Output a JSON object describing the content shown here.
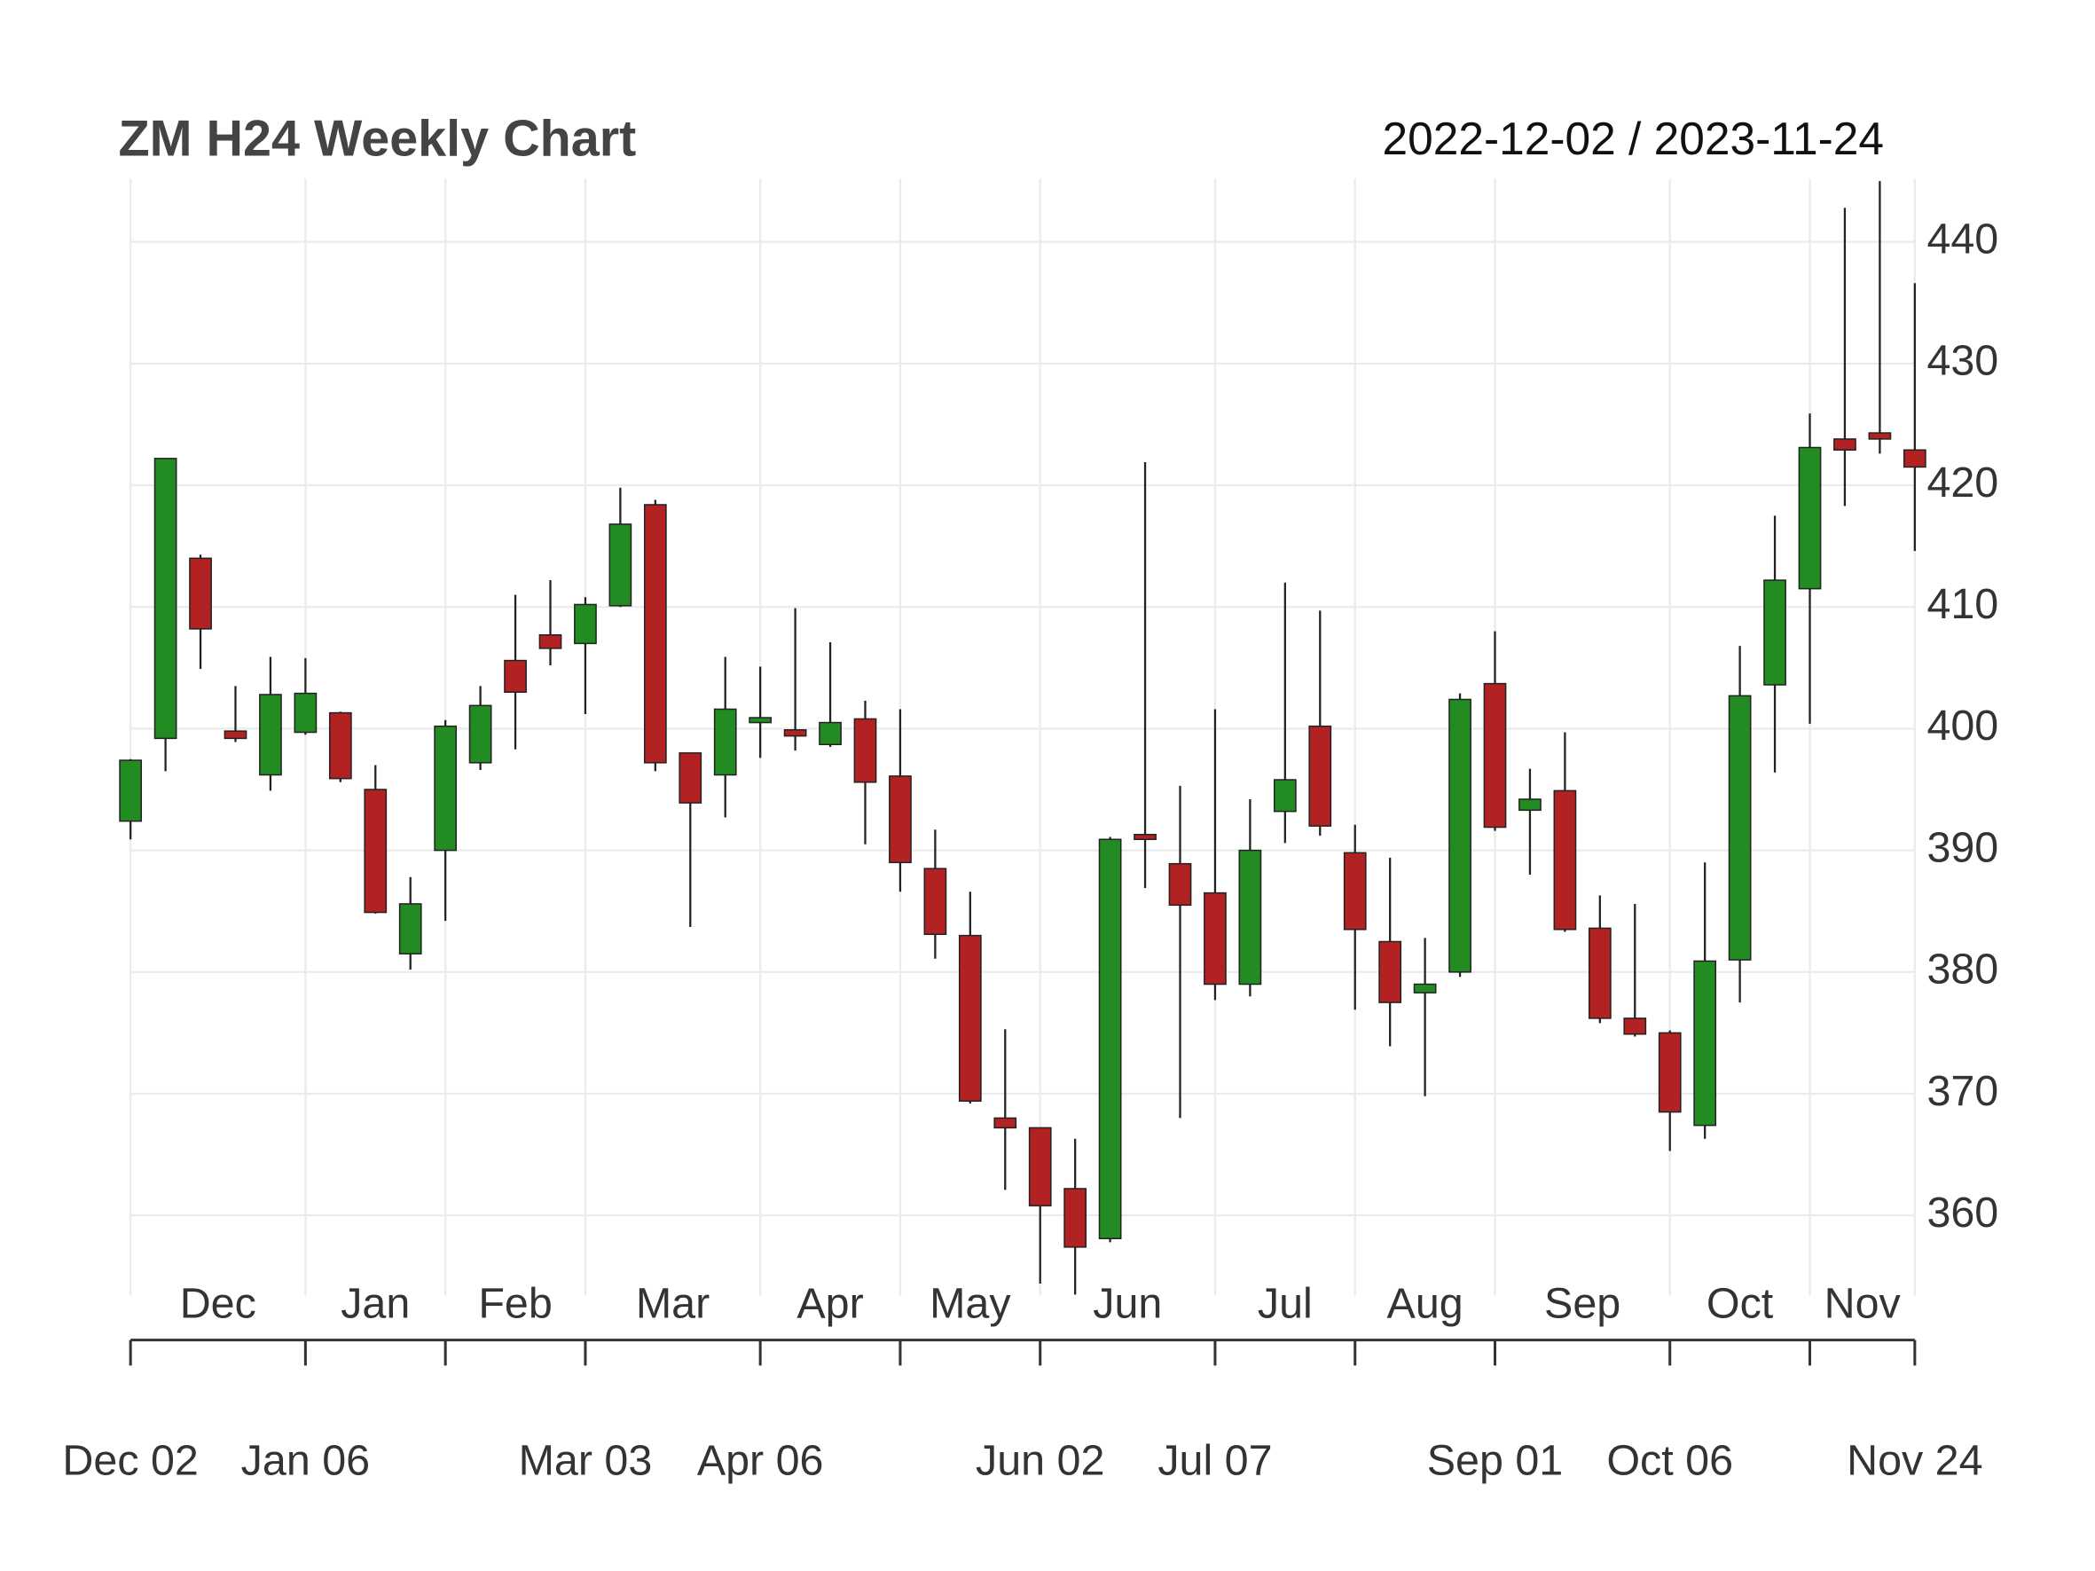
{
  "chart_data": {
    "type": "candlestick",
    "title": "ZM H24 Weekly Chart",
    "subtitle": "2022-12-02 / 2023-11-24",
    "x": [
      "2022-12-02",
      "2022-12-09",
      "2022-12-16",
      "2022-12-23",
      "2022-12-30",
      "2023-01-06",
      "2023-01-13",
      "2023-01-20",
      "2023-01-27",
      "2023-02-03",
      "2023-02-10",
      "2023-02-17",
      "2023-02-24",
      "2023-03-03",
      "2023-03-10",
      "2023-03-17",
      "2023-03-24",
      "2023-03-31",
      "2023-04-06",
      "2023-04-14",
      "2023-04-21",
      "2023-04-28",
      "2023-05-05",
      "2023-05-12",
      "2023-05-19",
      "2023-05-26",
      "2023-06-02",
      "2023-06-09",
      "2023-06-16",
      "2023-06-23",
      "2023-06-30",
      "2023-07-07",
      "2023-07-14",
      "2023-07-21",
      "2023-07-28",
      "2023-08-04",
      "2023-08-11",
      "2023-08-18",
      "2023-08-25",
      "2023-09-01",
      "2023-09-08",
      "2023-09-15",
      "2023-09-22",
      "2023-09-29",
      "2023-10-06",
      "2023-10-13",
      "2023-10-20",
      "2023-10-27",
      "2023-11-03",
      "2023-11-10",
      "2023-11-17",
      "2023-11-24"
    ],
    "open": [
      392.4,
      399.2,
      414.0,
      399.8,
      396.2,
      399.7,
      401.3,
      395.0,
      381.5,
      390.0,
      397.2,
      405.6,
      407.7,
      407.0,
      410.1,
      418.4,
      398.0,
      396.2,
      400.5,
      399.9,
      398.7,
      400.8,
      396.1,
      388.5,
      383.0,
      368.0,
      367.2,
      362.2,
      358.1,
      391.3,
      388.9,
      386.5,
      379.0,
      393.2,
      400.2,
      389.8,
      382.5,
      378.3,
      380.0,
      403.7,
      393.3,
      394.9,
      383.6,
      376.2,
      375.0,
      367.4,
      381.0,
      403.6,
      411.5,
      423.8,
      424.3,
      422.9
    ],
    "high": [
      397.5,
      422.2,
      414.3,
      403.5,
      405.9,
      405.8,
      401.4,
      397.0,
      387.8,
      400.7,
      403.5,
      411.0,
      412.2,
      410.8,
      419.8,
      418.8,
      398.0,
      405.9,
      405.1,
      409.9,
      407.1,
      402.3,
      401.6,
      391.7,
      386.6,
      375.3,
      367.2,
      366.3,
      391.1,
      421.9,
      395.3,
      401.6,
      394.2,
      412.0,
      409.7,
      392.1,
      389.4,
      382.8,
      402.9,
      408.0,
      396.7,
      399.7,
      386.3,
      385.6,
      375.2,
      389.0,
      406.8,
      417.5,
      425.9,
      442.8,
      445.0,
      436.6
    ],
    "low": [
      390.9,
      396.5,
      404.9,
      398.9,
      394.9,
      399.5,
      395.6,
      384.8,
      380.2,
      384.2,
      396.6,
      398.3,
      405.2,
      401.2,
      410.0,
      396.5,
      383.7,
      392.7,
      397.6,
      398.2,
      398.5,
      390.5,
      386.6,
      381.1,
      369.2,
      362.1,
      354.4,
      353.5,
      357.8,
      386.9,
      368.0,
      377.7,
      378.0,
      390.6,
      391.2,
      376.9,
      373.9,
      369.8,
      379.6,
      391.6,
      388.0,
      383.3,
      375.8,
      374.7,
      365.3,
      366.3,
      377.5,
      396.4,
      400.4,
      418.3,
      422.6,
      414.6
    ],
    "close": [
      397.4,
      422.2,
      408.2,
      399.2,
      402.8,
      402.9,
      395.9,
      384.9,
      385.6,
      400.2,
      401.9,
      403.0,
      406.6,
      410.2,
      416.8,
      397.2,
      393.9,
      401.6,
      400.9,
      399.4,
      400.5,
      395.6,
      389.0,
      383.1,
      369.4,
      367.2,
      360.8,
      357.4,
      390.9,
      390.9,
      385.5,
      379.0,
      390.0,
      395.8,
      392.0,
      383.5,
      377.5,
      379.0,
      402.4,
      391.9,
      394.2,
      383.5,
      376.2,
      374.9,
      368.5,
      380.9,
      402.7,
      412.2,
      423.1,
      422.9,
      423.8,
      421.5
    ],
    "up_color": "#228b22",
    "down_color": "#b22222",
    "ylim": [
      353.4,
      445.2
    ],
    "yticks": [
      360,
      370,
      380,
      390,
      400,
      410,
      420,
      430,
      440
    ],
    "period_labels": [
      "Dec",
      "Jan",
      "Feb",
      "Mar",
      "Apr",
      "May",
      "Jun",
      "Jul",
      "Aug",
      "Sep",
      "Oct",
      "Nov"
    ],
    "xticks": [
      {
        "value": "2022-12-02",
        "label": "Dec 02"
      },
      {
        "value": "2023-01-06",
        "label": "Jan 06"
      },
      {
        "value": "2023-03-03",
        "label": "Mar 03"
      },
      {
        "value": "2023-04-06",
        "label": "Apr 06"
      },
      {
        "value": "2023-06-02",
        "label": "Jun 02"
      },
      {
        "value": "2023-07-07",
        "label": "Jul 07"
      },
      {
        "value": "2023-09-01",
        "label": "Sep 01"
      },
      {
        "value": "2023-10-06",
        "label": "Oct 06"
      },
      {
        "value": "2023-11-24",
        "label": "Nov 24"
      }
    ],
    "grid": true
  }
}
